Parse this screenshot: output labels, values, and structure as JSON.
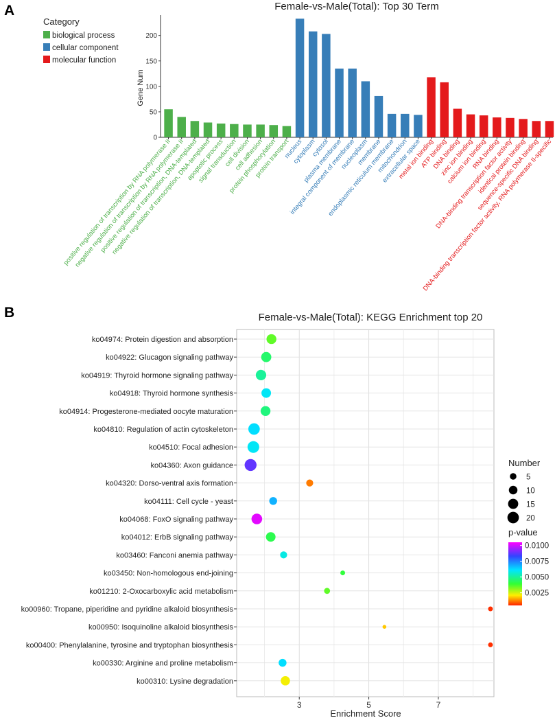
{
  "panels": {
    "a_letter": "A",
    "b_letter": "B"
  },
  "colors": {
    "biological process": "#4daf4a",
    "cellular component": "#377eb8",
    "molecular function": "#e41a1c"
  },
  "chart_data": [
    {
      "type": "bar",
      "title": "Female-vs-Male(Total): Top 30 Term",
      "ylabel": "Gene Num",
      "xlabel": "",
      "ylim": [
        0,
        240
      ],
      "yticks": [
        0,
        50,
        100,
        150,
        200
      ],
      "legend": {
        "title": "Category",
        "position": "top-left",
        "entries": [
          "biological process",
          "cellular component",
          "molecular function"
        ]
      },
      "categories": [
        "positive regulation of transcription by RNA polymerase II",
        "negative regulation of transcription by RNA polymerase II",
        "positive regulation of transcription, DNA-templated",
        "negative regulation of transcription, DNA-templated",
        "apoptotic process",
        "signal transduction",
        "cell division",
        "cell adhesion",
        "protein phosphorylation",
        "protein transport",
        "nucleus",
        "cytoplasm",
        "cytosol",
        "plasma membrane",
        "integral component of membrane",
        "nucleoplasm",
        "membrane",
        "endoplasmic reticulum membrane",
        "mitochondrion",
        "extracellular space",
        "metal ion binding",
        "ATP binding",
        "DNA binding",
        "zinc ion binding",
        "calcium ion binding",
        "RNA binding",
        "DNA-binding transcription factor activity",
        "identical protein binding",
        "sequence-specific DNA binding",
        "DNA-binding transcription factor activity, RNA polymerase II-specific"
      ],
      "values": [
        55,
        40,
        32,
        29,
        27,
        26,
        25,
        25,
        24,
        22,
        233,
        208,
        203,
        135,
        135,
        110,
        81,
        46,
        46,
        44,
        118,
        108,
        56,
        45,
        43,
        39,
        38,
        36,
        32,
        32
      ],
      "groups": [
        "biological process",
        "biological process",
        "biological process",
        "biological process",
        "biological process",
        "biological process",
        "biological process",
        "biological process",
        "biological process",
        "biological process",
        "cellular component",
        "cellular component",
        "cellular component",
        "cellular component",
        "cellular component",
        "cellular component",
        "cellular component",
        "cellular component",
        "cellular component",
        "cellular component",
        "molecular function",
        "molecular function",
        "molecular function",
        "molecular function",
        "molecular function",
        "molecular function",
        "molecular function",
        "molecular function",
        "molecular function",
        "molecular function"
      ]
    },
    {
      "type": "scatter",
      "title": "Female-vs-Male(Total): KEGG Enrichment top 20",
      "xlabel": "Enrichment Score",
      "ylabel": "",
      "xlim": [
        1.2,
        8.6
      ],
      "xticks": [
        3,
        5,
        7
      ],
      "size_legend": {
        "title": "Number",
        "values": [
          5,
          10,
          15,
          20
        ]
      },
      "color_legend": {
        "title": "p-value",
        "range": [
          0.0005,
          0.0105
        ],
        "ticks": [
          0.01,
          0.0075,
          0.005,
          0.0025
        ],
        "tick_labels": [
          "0.0100",
          "0.0075",
          "0.0050",
          "0.0025"
        ]
      },
      "points": [
        {
          "term": "ko04974: Protein digestion and absorption",
          "x": 2.2,
          "number": 14,
          "pvalue": 0.0035
        },
        {
          "term": "ko04922: Glucagon signaling pathway",
          "x": 2.05,
          "number": 15,
          "pvalue": 0.0045
        },
        {
          "term": "ko04919: Thyroid hormone signaling pathway",
          "x": 1.9,
          "number": 16,
          "pvalue": 0.005
        },
        {
          "term": "ko04918: Thyroid hormone synthesis",
          "x": 2.05,
          "number": 13,
          "pvalue": 0.006
        },
        {
          "term": "ko04914: Progesterone-mediated oocyte maturation",
          "x": 2.03,
          "number": 14,
          "pvalue": 0.0047
        },
        {
          "term": "ko04810: Regulation of actin cytoskeleton",
          "x": 1.7,
          "number": 20,
          "pvalue": 0.0062
        },
        {
          "term": "ko04510: Focal adhesion",
          "x": 1.68,
          "number": 21,
          "pvalue": 0.006
        },
        {
          "term": "ko04360: Axon guidance",
          "x": 1.6,
          "number": 22,
          "pvalue": 0.0088
        },
        {
          "term": "ko04320: Dorso-ventral axis formation",
          "x": 3.3,
          "number": 6,
          "pvalue": 0.0012
        },
        {
          "term": "ko04111: Cell cycle - yeast",
          "x": 2.25,
          "number": 8,
          "pvalue": 0.0068
        },
        {
          "term": "ko04068: FoxO signaling pathway",
          "x": 1.78,
          "number": 17,
          "pvalue": 0.0102
        },
        {
          "term": "ko04012: ErbB signaling pathway",
          "x": 2.18,
          "number": 13,
          "pvalue": 0.0042
        },
        {
          "term": "ko03460: Fanconi anemia pathway",
          "x": 2.55,
          "number": 6,
          "pvalue": 0.0058
        },
        {
          "term": "ko03450: Non-homologous end-joining",
          "x": 4.25,
          "number": 2,
          "pvalue": 0.004
        },
        {
          "term": "ko01210: 2-Oxocarboxylic acid metabolism",
          "x": 3.8,
          "number": 4,
          "pvalue": 0.0035
        },
        {
          "term": "ko00960: Tropane, piperidine and pyridine alkaloid biosynthesis",
          "x": 8.5,
          "number": 2,
          "pvalue": 0.0006
        },
        {
          "term": "ko00950: Isoquinoline alkaloid biosynthesis",
          "x": 5.45,
          "number": 1,
          "pvalue": 0.0018
        },
        {
          "term": "ko00400: Phenylalanine, tyrosine and tryptophan biosynthesis",
          "x": 8.5,
          "number": 2,
          "pvalue": 0.0006
        },
        {
          "term": "ko00330: Arginine and proline metabolism",
          "x": 2.52,
          "number": 8,
          "pvalue": 0.0062
        },
        {
          "term": "ko00310: Lysine degradation",
          "x": 2.6,
          "number": 12,
          "pvalue": 0.0022
        }
      ]
    }
  ]
}
